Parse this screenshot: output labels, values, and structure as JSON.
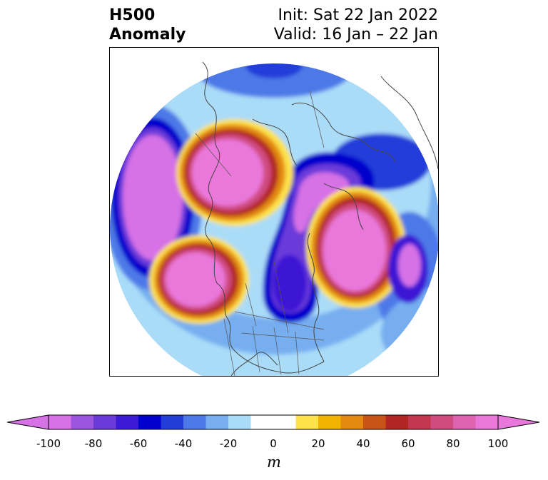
{
  "title": {
    "left_line1": "H500",
    "left_line2": "Anomaly",
    "right_line1": "Init: Sat 22 Jan 2022",
    "right_line2": "Valid: 16 Jan – 22 Jan"
  },
  "map": {
    "projection": "north-polar-stereographic",
    "region": "North America and surrounding Northern Hemisphere",
    "features": [
      {
        "label": "ridge-west-central-canada",
        "sign": "positive",
        "anomaly_m": 100
      },
      {
        "label": "ridge-northeast-pacific-gulf-of-alaska",
        "sign": "positive",
        "anomaly_m": 100
      },
      {
        "label": "ridge-greenland-north-atlantic",
        "sign": "positive",
        "anomaly_m": 100
      },
      {
        "label": "trough-eastern-north-america",
        "sign": "negative",
        "anomaly_m": -100
      },
      {
        "label": "trough-central-arctic",
        "sign": "negative",
        "anomaly_m": -100
      },
      {
        "label": "trough-siberia-east-asia",
        "sign": "negative",
        "anomaly_m": -100
      },
      {
        "label": "trough-north-atlantic-east",
        "sign": "negative",
        "anomaly_m": -100
      }
    ]
  },
  "colorbar": {
    "unit": "m",
    "min": -100,
    "max": 100,
    "step": 10,
    "extend": "both",
    "tick_labels": [
      "-100",
      "-80",
      "-60",
      "-40",
      "-20",
      "0",
      "20",
      "40",
      "60",
      "80",
      "100"
    ],
    "colors": [
      "#d671e6",
      "#9d55e0",
      "#6a3bd9",
      "#3c19d4",
      "#0000cc",
      "#233dd9",
      "#4e79e8",
      "#76aef0",
      "#aadcf8",
      "#ffffff",
      "#ffffff",
      "#fde24a",
      "#f1b500",
      "#e38910",
      "#c85416",
      "#b12622",
      "#c2374f",
      "#d04b80",
      "#de64b2",
      "#ea78db"
    ],
    "extend_low_color": "#d671e6",
    "extend_high_color": "#ea78db"
  }
}
